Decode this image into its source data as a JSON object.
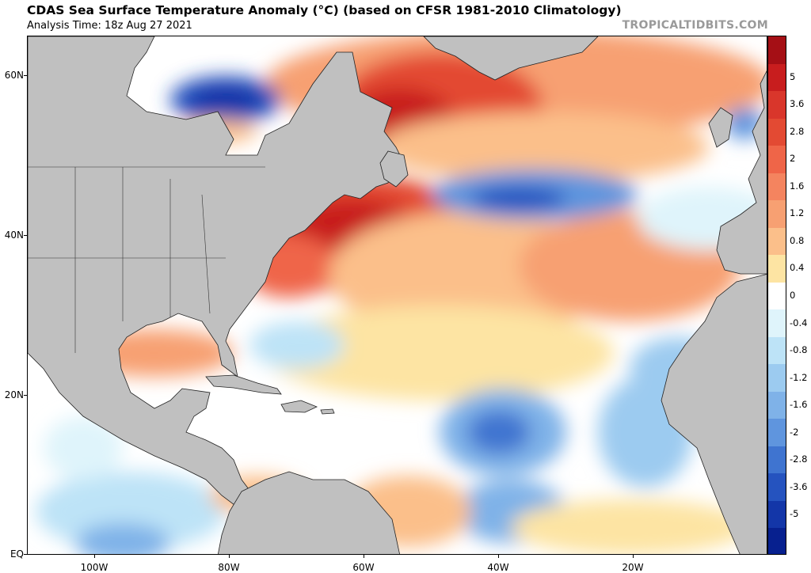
{
  "header": {
    "title": "CDAS Sea Surface Temperature Anomaly (°C) (based on CFSR 1981-2010 Climatology)",
    "analysis_time": "Analysis Time: 18z Aug 27 2021",
    "credit": "TROPICALTIDBITS.COM"
  },
  "map": {
    "projection": "equirectangular",
    "lon_range": [
      -110,
      0
    ],
    "lat_range": [
      0,
      65
    ],
    "land_color": "#c0c0c0",
    "lat_ticks": [
      {
        "label": "60N",
        "lat": 60
      },
      {
        "label": "40N",
        "lat": 40
      },
      {
        "label": "20N",
        "lat": 20
      },
      {
        "label": "EQ",
        "lat": 0
      }
    ],
    "lon_ticks": [
      {
        "label": "100W",
        "lon": -100
      },
      {
        "label": "80W",
        "lon": -80
      },
      {
        "label": "60W",
        "lon": -60
      },
      {
        "label": "40W",
        "lon": -40
      },
      {
        "label": "20W",
        "lon": -20
      }
    ]
  },
  "colorbar": {
    "labels": [
      "5",
      "3.6",
      "2.8",
      "2",
      "1.6",
      "1.2",
      "0.8",
      "0.4",
      "0",
      "-0.4",
      "-0.8",
      "-1.2",
      "-1.6",
      "-2",
      "-2.8",
      "-3.6",
      "-5"
    ],
    "colors": [
      "#a50f15",
      "#c81d1e",
      "#d9362b",
      "#e34a33",
      "#ef6548",
      "#f4845f",
      "#f7a072",
      "#fbbf8a",
      "#fde4a3",
      "#ffffff",
      "#dff4fb",
      "#bde3f7",
      "#9ccbf0",
      "#7fb2e8",
      "#5f95de",
      "#3f74d0",
      "#2553bf",
      "#1336a8",
      "#07208f"
    ]
  }
}
